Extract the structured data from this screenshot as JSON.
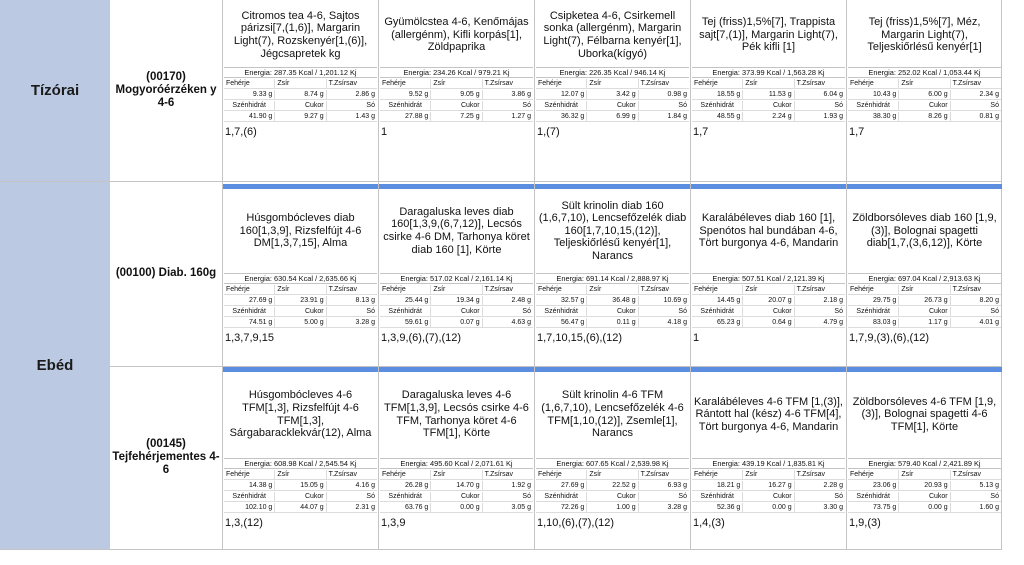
{
  "sections": [
    {
      "meal": "Tízórai",
      "groups": [
        0
      ]
    },
    {
      "meal": "Ebéd",
      "groups": [
        1,
        2
      ]
    }
  ],
  "groups": [
    {
      "diet": "(00170) Mogyoróérzéken y 4-6",
      "days": [
        {
          "desc": "Citromos tea 4-6, Sajtos párizsi[7,(1,6)], Margarin Light(7), Rozskenyér[1,(6)], Jégcsapretek kg",
          "energy": "Energia: 287.35 Kcal / 1,201.12 Kj",
          "nut": [
            "9.33 g",
            "8.74 g",
            "2.86 g",
            "41.90 g",
            "9.27 g",
            "1.43 g"
          ],
          "allergen": "1,7,(6)"
        },
        {
          "desc": "Gyümölcstea 4-6, Kenőmájas (allergénm), Kifli korpás[1], Zöldpaprika",
          "energy": "Energia: 234.26 Kcal / 979.21 Kj",
          "nut": [
            "9.52 g",
            "9.05 g",
            "3.86 g",
            "27.88 g",
            "7.25 g",
            "1.27 g"
          ],
          "allergen": "1"
        },
        {
          "desc": "Csipketea 4-6, Csirkemell sonka (allergénm), Margarin Light(7), Félbarna kenyér[1], Uborka(kígyó)",
          "energy": "Energia: 226.35 Kcal / 946.14 Kj",
          "nut": [
            "12.07 g",
            "3.42 g",
            "0.98 g",
            "36.32 g",
            "6.99 g",
            "1.84 g"
          ],
          "allergen": "1,(7)"
        },
        {
          "desc": "Tej (friss)1,5%[7], Trappista sajt[7,(1)], Margarin Light(7), Pék kifli [1]",
          "energy": "Energia: 373.99 Kcal / 1,563.28 Kj",
          "nut": [
            "18.55 g",
            "11.53 g",
            "6.04 g",
            "48.55 g",
            "2.24 g",
            "1.93 g"
          ],
          "allergen": "1,7"
        },
        {
          "desc": "Tej (friss)1,5%[7], Méz, Margarin Light(7), Teljeskiőrlésű kenyér[1]",
          "energy": "Energia: 252.02 Kcal / 1,053.44 Kj",
          "nut": [
            "10.43 g",
            "6.00 g",
            "2.34 g",
            "38.30 g",
            "8.26 g",
            "0.81 g"
          ],
          "allergen": "1,7"
        }
      ]
    },
    {
      "diet": "(00100) Diab. 160g",
      "days": [
        {
          "desc": "Húsgombócleves diab 160[1,3,9], Rizsfelfújt 4-6 DM[1,3,7,15], Alma",
          "energy": "Energia: 630.54 Kcal / 2,635.66 Kj",
          "nut": [
            "27.69 g",
            "23.91 g",
            "8.13 g",
            "74.51 g",
            "5.00 g",
            "3.28 g"
          ],
          "allergen": "1,3,7,9,15"
        },
        {
          "desc": "Daragaluska leves diab 160[1,3,9,(6,7,12)], Lecsós csirke 4-6 DM, Tarhonya köret diab 160 [1], Körte",
          "energy": "Energia: 517.02 Kcal / 2,161.14 Kj",
          "nut": [
            "25.44 g",
            "19.34 g",
            "2.48 g",
            "59.61 g",
            "0.07 g",
            "4.63 g"
          ],
          "allergen": "1,3,9,(6),(7),(12)"
        },
        {
          "desc": "Sült krinolin diab 160 (1,6,7,10), Lencsefőzelék diab 160[1,7,10,15,(12)], Teljeskiőrlésű kenyér[1], Narancs",
          "energy": "Energia: 691.14 Kcal / 2,888.97 Kj",
          "nut": [
            "32.57 g",
            "36.48 g",
            "10.69 g",
            "56.47 g",
            "0.11 g",
            "4.18 g"
          ],
          "allergen": "1,7,10,15,(6),(12)"
        },
        {
          "desc": "Karalábéleves diab 160 [1], Spenótos hal bundában 4-6, Tört burgonya 4-6, Mandarin",
          "energy": "Energia: 507.51 Kcal / 2,121.39 Kj",
          "nut": [
            "14.45 g",
            "20.07 g",
            "2.18 g",
            "65.23 g",
            "0.64 g",
            "4.79 g"
          ],
          "allergen": "1"
        },
        {
          "desc": "Zöldborsóleves diab 160 [1,9,(3)], Bolognai spagetti diab[1,7,(3,6,12)], Körte",
          "energy": "Energia: 697.04 Kcal / 2,913.63 Kj",
          "nut": [
            "29.75 g",
            "26.73 g",
            "8.20 g",
            "83.03 g",
            "1.17 g",
            "4.01 g"
          ],
          "allergen": "1,7,9,(3),(6),(12)"
        }
      ]
    },
    {
      "diet": "(00145) Tejfehérjementes 4-6",
      "days": [
        {
          "desc": "Húsgombócleves 4-6 TFM[1,3], Rizsfelfújt 4-6 TFM[1,3], Sárgabaracklekvár(12), Alma",
          "energy": "Energia: 608.98 Kcal / 2,545.54 Kj",
          "nut": [
            "14.38 g",
            "15.05 g",
            "4.16 g",
            "102.10 g",
            "44.07 g",
            "2.31 g"
          ],
          "allergen": "1,3,(12)"
        },
        {
          "desc": "Daragaluska leves 4-6 TFM[1,3,9], Lecsós csirke 4-6 TFM, Tarhonya köret 4-6 TFM[1], Körte",
          "energy": "Energia: 495.60 Kcal / 2,071.61 Kj",
          "nut": [
            "26.28 g",
            "14.70 g",
            "1.92 g",
            "63.76 g",
            "0.00 g",
            "3.05 g"
          ],
          "allergen": "1,3,9"
        },
        {
          "desc": "Sült krinolin 4-6 TFM (1,6,7,10), Lencsefőzelék 4-6 TFM[1,10,(12)], Zsemle[1], Narancs",
          "energy": "Energia: 607.65 Kcal / 2,539.98 Kj",
          "nut": [
            "27.69 g",
            "22.52 g",
            "6.93 g",
            "72.26 g",
            "1.00 g",
            "3.28 g"
          ],
          "allergen": "1,10,(6),(7),(12)"
        },
        {
          "desc": "Karalábéleves 4-6 TFM [1,(3)], Rántott hal (kész) 4-6 TFM[4], Tört burgonya 4-6, Mandarin",
          "energy": "Energia: 439.19 Kcal / 1,835.81 Kj",
          "nut": [
            "18.21 g",
            "16.27 g",
            "2.28 g",
            "52.36 g",
            "0.00 g",
            "3.30 g"
          ],
          "allergen": "1,4,(3)"
        },
        {
          "desc": "Zöldborsóleves 4-6 TFM [1,9,(3)], Bolognai spagetti 4-6 TFM[1], Körte",
          "energy": "Energia: 579.40 Kcal / 2,421.89 Kj",
          "nut": [
            "23.06 g",
            "20.93 g",
            "5.13 g",
            "73.75 g",
            "0.00 g",
            "1.60 g"
          ],
          "allergen": "1,9,(3)"
        }
      ]
    }
  ],
  "nutrient_labels": {
    "row1": [
      "Fehérje",
      "Zsír",
      "T.Zsírsav"
    ],
    "row2": [
      "Szénhidrát",
      "Cukor",
      "Só"
    ]
  }
}
